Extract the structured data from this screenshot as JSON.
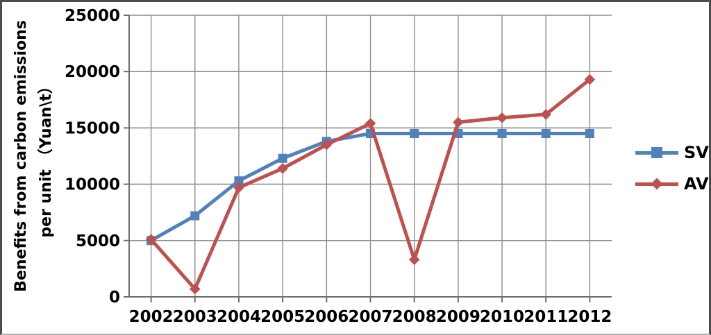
{
  "chart_data": {
    "type": "line",
    "title": "",
    "ylabel": "Benefits from carbon emissions per unit （Yuan\\t）",
    "ylabel_lines": [
      "Benefits from carbon emissions",
      "per unit （Yuan\\t）"
    ],
    "xlabel": "",
    "categories": [
      "2002",
      "2003",
      "2004",
      "2005",
      "2006",
      "2007",
      "2008",
      "2009",
      "2010",
      "2011",
      "2012"
    ],
    "series": [
      {
        "name": "SV",
        "color": "#4F81BD",
        "marker": "square",
        "values": [
          5000,
          7200,
          10300,
          12300,
          13800,
          14500,
          14500,
          14500,
          14500,
          14500,
          14500
        ]
      },
      {
        "name": "AV",
        "color": "#C0504D",
        "marker": "diamond",
        "values": [
          5100,
          700,
          9700,
          11400,
          13500,
          15400,
          3300,
          15500,
          15900,
          16200,
          19300
        ]
      }
    ],
    "ylim": [
      0,
      25000
    ],
    "yticks": [
      0,
      5000,
      10000,
      15000,
      20000,
      25000
    ],
    "grid": true,
    "gridline_color": "#8c8c8c",
    "axis_color": "#6e6e6e",
    "text_color": "#000000",
    "legend_position": "right"
  }
}
